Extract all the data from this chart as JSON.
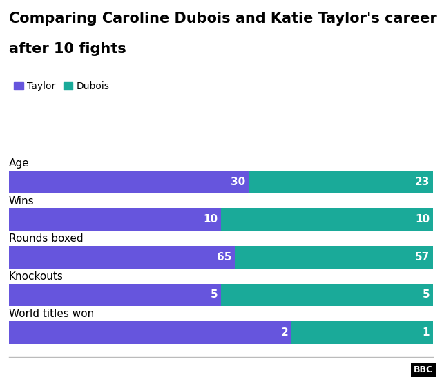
{
  "title_line1": "Comparing Caroline Dubois and Katie Taylor's career",
  "title_line2": "after 10 fights",
  "categories": [
    "Age",
    "Wins",
    "Rounds boxed",
    "Knockouts",
    "World titles won"
  ],
  "taylor_values": [
    30,
    10,
    65,
    5,
    2
  ],
  "dubois_values": [
    23,
    10,
    57,
    5,
    1
  ],
  "taylor_color": "#6655dd",
  "dubois_color": "#1aaa99",
  "taylor_label": "Taylor",
  "dubois_label": "Dubois",
  "background_color": "#ffffff",
  "text_color": "#000000",
  "bar_text_color": "#ffffff",
  "title_fontsize": 15,
  "label_fontsize": 11,
  "value_fontsize": 11,
  "legend_fontsize": 10,
  "bar_height": 0.6
}
